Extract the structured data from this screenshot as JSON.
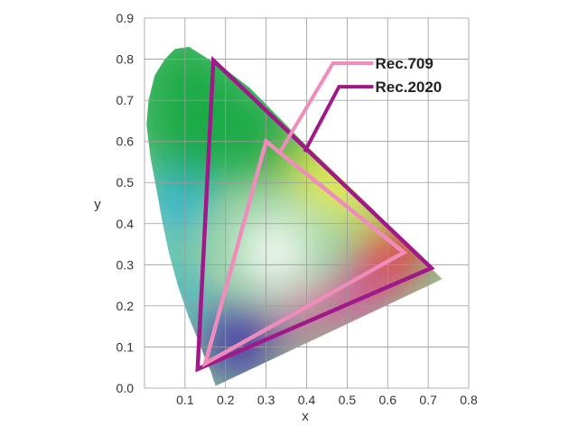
{
  "chart_data": {
    "type": "scatter",
    "title": "",
    "xlabel": "x",
    "ylabel": "y",
    "xlim": [
      0.0,
      0.8
    ],
    "ylim": [
      0.0,
      0.9
    ],
    "x_ticks": [
      "0.1",
      "0.2",
      "0.3",
      "0.4",
      "0.5",
      "0.6",
      "0.7",
      "0.8"
    ],
    "y_ticks": [
      "0.0",
      "0.1",
      "0.2",
      "0.3",
      "0.4",
      "0.5",
      "0.6",
      "0.7",
      "0.8",
      "0.9"
    ],
    "grid": true,
    "legend_placement": "top-right",
    "spectral_locus": [
      [
        0.175,
        0.005
      ],
      [
        0.174,
        0.01
      ],
      [
        0.17,
        0.02
      ],
      [
        0.164,
        0.04
      ],
      [
        0.15,
        0.07
      ],
      [
        0.135,
        0.11
      ],
      [
        0.11,
        0.17
      ],
      [
        0.082,
        0.25
      ],
      [
        0.06,
        0.33
      ],
      [
        0.045,
        0.4
      ],
      [
        0.03,
        0.48
      ],
      [
        0.015,
        0.56
      ],
      [
        0.005,
        0.64
      ],
      [
        0.01,
        0.7
      ],
      [
        0.025,
        0.76
      ],
      [
        0.05,
        0.8
      ],
      [
        0.075,
        0.825
      ],
      [
        0.11,
        0.83
      ],
      [
        0.15,
        0.805
      ],
      [
        0.2,
        0.775
      ],
      [
        0.26,
        0.73
      ],
      [
        0.33,
        0.66
      ],
      [
        0.4,
        0.59
      ],
      [
        0.48,
        0.515
      ],
      [
        0.56,
        0.44
      ],
      [
        0.64,
        0.355
      ],
      [
        0.735,
        0.265
      ]
    ],
    "series": [
      {
        "name": "Rec.709",
        "color": "#f08cbc",
        "points": [
          [
            0.64,
            0.33
          ],
          [
            0.3,
            0.6
          ],
          [
            0.15,
            0.06
          ]
        ]
      },
      {
        "name": "Rec.2020",
        "color": "#a0188a",
        "points": [
          [
            0.708,
            0.292
          ],
          [
            0.17,
            0.797
          ],
          [
            0.131,
            0.046
          ]
        ]
      }
    ],
    "callouts": [
      {
        "series": "Rec.709",
        "label": [
          0.565,
          0.79
        ],
        "elbow": [
          0.465,
          0.79
        ],
        "anchor": [
          0.335,
          0.575
        ]
      },
      {
        "series": "Rec.2020",
        "label": [
          0.565,
          0.733
        ],
        "elbow": [
          0.48,
          0.733
        ],
        "anchor": [
          0.395,
          0.575
        ]
      }
    ],
    "color_fill": {
      "green": "#1eaa46",
      "yellow": "#f4ee4a",
      "red": "#ee2828",
      "magenta": "#e23c96",
      "blue": "#4a38a8",
      "cyan": "#20aee6",
      "white": "#ffffff"
    }
  }
}
